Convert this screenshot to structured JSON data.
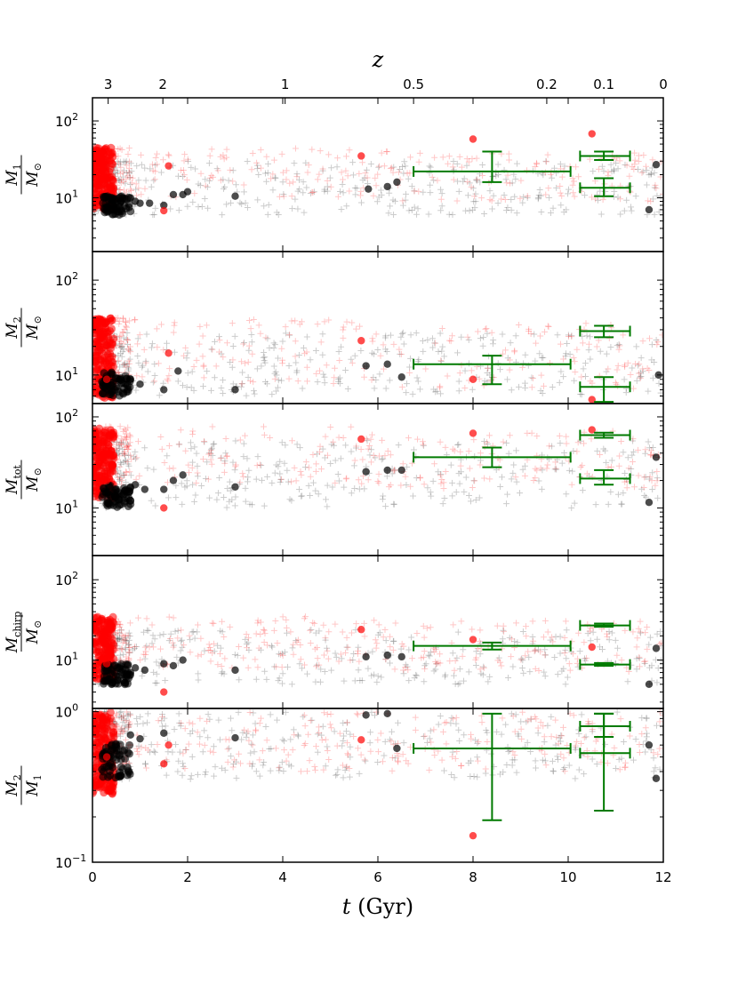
{
  "chart_data": {
    "type": "scatter",
    "xlabel": "t (Gyr)",
    "xlim": [
      0,
      12
    ],
    "x_ticks": [
      0,
      2,
      4,
      6,
      8,
      10,
      12
    ],
    "top_axis": {
      "label": "z",
      "ticks": [
        {
          "label": "3",
          "t": 0.33
        },
        {
          "label": "2",
          "t": 1.48
        },
        {
          "label": "1",
          "t": 4.05
        },
        {
          "label": "0.5",
          "t": 6.75
        },
        {
          "label": "0.2",
          "t": 9.55
        },
        {
          "label": "0.1",
          "t": 10.75
        },
        {
          "label": "0",
          "t": 12.0
        }
      ]
    },
    "colors": {
      "red": "#ff0000",
      "black": "#000000",
      "green": "#007a00"
    },
    "panels": [
      {
        "id": "m1",
        "ylabel_num": "M",
        "ylabel_num_sub": "1",
        "ylabel_den": "M",
        "ylabel_den_sub": "⊙",
        "yscale": "log",
        "ylim": [
          2,
          200
        ],
        "yticks": [
          {
            "v": 10,
            "base": "10",
            "exp": "1"
          },
          {
            "v": 100,
            "base": "10",
            "exp": "2"
          }
        ],
        "red_band": [
          10,
          45
        ],
        "black_band": [
          6,
          30
        ],
        "red_points": [
          [
            1.5,
            6.8
          ],
          [
            5.65,
            35
          ],
          [
            8.0,
            58
          ],
          [
            10.5,
            68
          ],
          [
            1.6,
            26
          ],
          [
            0.2,
            22
          ],
          [
            0.4,
            14
          ]
        ],
        "black_points": [
          [
            1.2,
            8.5
          ],
          [
            1.5,
            8
          ],
          [
            1.7,
            11
          ],
          [
            1.9,
            11
          ],
          [
            2.0,
            12
          ],
          [
            3.0,
            10.5
          ],
          [
            5.8,
            13
          ],
          [
            6.2,
            14
          ],
          [
            6.4,
            16
          ],
          [
            11.7,
            7
          ],
          [
            11.85,
            27
          ],
          [
            0.8,
            10
          ],
          [
            0.9,
            9
          ],
          [
            1.0,
            8.5
          ],
          [
            0.6,
            9
          ]
        ],
        "errbars": [
          {
            "x": 8.4,
            "xlo": 6.75,
            "xhi": 10.05,
            "y": 22,
            "ylo": 16,
            "yhi": 40
          },
          {
            "x": 10.75,
            "xlo": 10.25,
            "xhi": 11.3,
            "y": 35,
            "ylo": 31,
            "yhi": 40
          },
          {
            "x": 10.75,
            "xlo": 10.25,
            "xhi": 11.3,
            "y": 13.5,
            "ylo": 10.5,
            "yhi": 18
          }
        ]
      },
      {
        "id": "m2",
        "ylabel_num": "M",
        "ylabel_num_sub": "2",
        "ylabel_den": "M",
        "ylabel_den_sub": "⊙",
        "yscale": "log",
        "ylim": [
          5,
          200
        ],
        "yticks": [
          {
            "v": 10,
            "base": "10",
            "exp": "1"
          },
          {
            "v": 100,
            "base": "10",
            "exp": "2"
          }
        ],
        "red_band": [
          8,
          40
        ],
        "black_band": [
          6,
          28
        ],
        "red_points": [
          [
            1.6,
            17
          ],
          [
            5.65,
            23
          ],
          [
            8.0,
            9
          ],
          [
            10.5,
            5.5
          ],
          [
            0.3,
            9
          ]
        ],
        "black_points": [
          [
            1.0,
            8
          ],
          [
            1.5,
            7
          ],
          [
            1.8,
            11
          ],
          [
            3.0,
            7
          ],
          [
            5.75,
            12.5
          ],
          [
            6.2,
            13
          ],
          [
            6.5,
            9.5
          ],
          [
            11.9,
            10
          ],
          [
            0.7,
            8
          ],
          [
            0.8,
            9
          ]
        ],
        "errbars": [
          {
            "x": 8.4,
            "xlo": 6.75,
            "xhi": 10.05,
            "y": 13,
            "ylo": 8,
            "yhi": 16
          },
          {
            "x": 10.75,
            "xlo": 10.25,
            "xhi": 11.3,
            "y": 29,
            "ylo": 25,
            "yhi": 33
          },
          {
            "x": 10.75,
            "xlo": 10.25,
            "xhi": 11.3,
            "y": 7.5,
            "ylo": 5.2,
            "yhi": 9.5
          }
        ]
      },
      {
        "id": "mtot",
        "ylabel_num": "M",
        "ylabel_num_sub": "tot",
        "ylabel_den": "M",
        "ylabel_den_sub": "⊙",
        "yscale": "log",
        "ylim": [
          3,
          140
        ],
        "yticks": [
          {
            "v": 10,
            "base": "10",
            "exp": "1"
          },
          {
            "v": 100,
            "base": "10",
            "exp": "2"
          }
        ],
        "red_band": [
          18,
          80
        ],
        "black_band": [
          10,
          55
        ],
        "red_points": [
          [
            1.5,
            10
          ],
          [
            5.65,
            57
          ],
          [
            8.0,
            66
          ],
          [
            10.5,
            72
          ],
          [
            0.3,
            20
          ]
        ],
        "black_points": [
          [
            1.1,
            16
          ],
          [
            1.5,
            16
          ],
          [
            1.7,
            20
          ],
          [
            1.9,
            23
          ],
          [
            3.0,
            17
          ],
          [
            5.75,
            25
          ],
          [
            6.2,
            26
          ],
          [
            6.5,
            26
          ],
          [
            11.7,
            11.5
          ],
          [
            11.85,
            36
          ],
          [
            0.8,
            17
          ],
          [
            0.9,
            18
          ]
        ],
        "errbars": [
          {
            "x": 8.4,
            "xlo": 6.75,
            "xhi": 10.05,
            "y": 36,
            "ylo": 28,
            "yhi": 46
          },
          {
            "x": 10.75,
            "xlo": 10.25,
            "xhi": 11.3,
            "y": 63,
            "ylo": 59,
            "yhi": 67
          },
          {
            "x": 10.75,
            "xlo": 10.25,
            "xhi": 11.3,
            "y": 21,
            "ylo": 18,
            "yhi": 26
          }
        ]
      },
      {
        "id": "mchirp",
        "ylabel_num": "M",
        "ylabel_num_sub": "chirp",
        "ylabel_den": "M",
        "ylabel_den_sub": "⊙",
        "yscale": "log",
        "ylim": [
          2.5,
          200
        ],
        "yticks": [
          {
            "v": 10,
            "base": "10",
            "exp": "1"
          },
          {
            "v": 100,
            "base": "10",
            "exp": "2"
          }
        ],
        "red_band": [
          8,
          35
        ],
        "black_band": [
          5,
          24
        ],
        "red_points": [
          [
            1.5,
            4
          ],
          [
            5.65,
            24
          ],
          [
            8.0,
            18
          ],
          [
            10.5,
            14.5
          ],
          [
            0.3,
            9
          ]
        ],
        "black_points": [
          [
            1.1,
            7.5
          ],
          [
            1.5,
            9
          ],
          [
            1.7,
            8.5
          ],
          [
            1.9,
            10
          ],
          [
            3.0,
            7.5
          ],
          [
            5.75,
            11
          ],
          [
            6.2,
            11.5
          ],
          [
            6.5,
            11
          ],
          [
            11.7,
            5
          ],
          [
            11.85,
            14
          ],
          [
            0.8,
            7
          ],
          [
            0.9,
            8
          ]
        ],
        "errbars": [
          {
            "x": 8.4,
            "xlo": 6.75,
            "xhi": 10.05,
            "y": 15,
            "ylo": 13.5,
            "yhi": 16.5
          },
          {
            "x": 10.75,
            "xlo": 10.25,
            "xhi": 11.3,
            "y": 27,
            "ylo": 26,
            "yhi": 28.5
          },
          {
            "x": 10.75,
            "xlo": 10.25,
            "xhi": 11.3,
            "y": 8.8,
            "ylo": 8.5,
            "yhi": 9.2
          }
        ]
      },
      {
        "id": "q",
        "ylabel_num": "M",
        "ylabel_num_sub": "2",
        "ylabel_den": "M",
        "ylabel_den_sub": "1",
        "yscale": "log",
        "ylim": [
          0.1,
          1.05
        ],
        "yticks": [
          {
            "v": 0.1,
            "base": "10",
            "exp": "−1"
          },
          {
            "v": 1,
            "base": "10",
            "exp": "0"
          }
        ],
        "red_band": [
          0.4,
          1.0
        ],
        "black_band": [
          0.35,
          1.0
        ],
        "red_points": [
          [
            1.5,
            0.45
          ],
          [
            1.6,
            0.6
          ],
          [
            5.65,
            0.65
          ],
          [
            8.0,
            0.15
          ],
          [
            0.3,
            0.5
          ]
        ],
        "black_points": [
          [
            1.0,
            0.66
          ],
          [
            1.5,
            0.72
          ],
          [
            3.0,
            0.67
          ],
          [
            5.75,
            0.95
          ],
          [
            6.2,
            0.97
          ],
          [
            6.4,
            0.57
          ],
          [
            11.7,
            0.6
          ],
          [
            11.85,
            0.36
          ],
          [
            0.8,
            0.7
          ]
        ],
        "errbars": [
          {
            "x": 8.4,
            "xlo": 6.75,
            "xhi": 10.05,
            "y": 0.57,
            "ylo": 0.19,
            "yhi": 0.97
          },
          {
            "x": 10.75,
            "xlo": 10.25,
            "xhi": 11.3,
            "y": 0.8,
            "ylo": 0.68,
            "yhi": 0.97
          },
          {
            "x": 10.75,
            "xlo": 10.25,
            "xhi": 11.3,
            "y": 0.53,
            "ylo": 0.22,
            "yhi": 0.97
          }
        ]
      }
    ]
  }
}
